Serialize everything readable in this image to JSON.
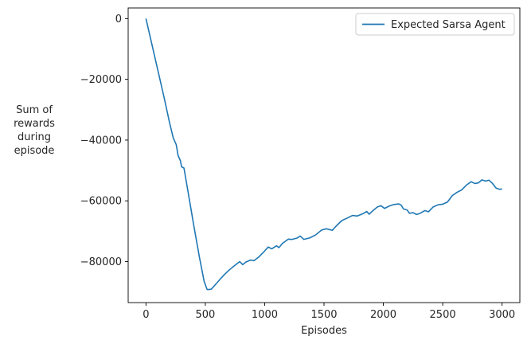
{
  "chart_data": {
    "type": "line",
    "title": "",
    "xlabel": "Episodes",
    "ylabel": [
      "Sum of",
      "rewards",
      "during",
      "episode"
    ],
    "xlim": [
      -150,
      3150
    ],
    "ylim": [
      -93500,
      3500
    ],
    "xticks": [
      0,
      500,
      1000,
      1500,
      2000,
      2500,
      3000
    ],
    "yticks": [
      0,
      -20000,
      -40000,
      -60000,
      -80000
    ],
    "grid": false,
    "legend": "top-right",
    "series": [
      {
        "name": "Expected Sarsa Agent",
        "color": "#1f77b4",
        "points": [
          [
            0,
            0
          ],
          [
            50,
            -8500
          ],
          [
            100,
            -17000
          ],
          [
            150,
            -25500
          ],
          [
            200,
            -34500
          ],
          [
            230,
            -39300
          ],
          [
            255,
            -41500
          ],
          [
            270,
            -45000
          ],
          [
            290,
            -46800
          ],
          [
            300,
            -48800
          ],
          [
            320,
            -49200
          ],
          [
            350,
            -56000
          ],
          [
            400,
            -67500
          ],
          [
            450,
            -78500
          ],
          [
            490,
            -86500
          ],
          [
            515,
            -89200
          ],
          [
            530,
            -89200
          ],
          [
            550,
            -89100
          ],
          [
            580,
            -87800
          ],
          [
            620,
            -86000
          ],
          [
            660,
            -84300
          ],
          [
            700,
            -82800
          ],
          [
            750,
            -81200
          ],
          [
            790,
            -80000
          ],
          [
            815,
            -81000
          ],
          [
            840,
            -80200
          ],
          [
            880,
            -79500
          ],
          [
            910,
            -79700
          ],
          [
            950,
            -78500
          ],
          [
            1000,
            -76500
          ],
          [
            1030,
            -75200
          ],
          [
            1060,
            -75800
          ],
          [
            1100,
            -74800
          ],
          [
            1120,
            -75400
          ],
          [
            1150,
            -74000
          ],
          [
            1200,
            -72600
          ],
          [
            1230,
            -72700
          ],
          [
            1270,
            -72300
          ],
          [
            1300,
            -71600
          ],
          [
            1330,
            -72700
          ],
          [
            1380,
            -72200
          ],
          [
            1430,
            -71200
          ],
          [
            1480,
            -69600
          ],
          [
            1520,
            -69200
          ],
          [
            1570,
            -69700
          ],
          [
            1600,
            -68400
          ],
          [
            1650,
            -66500
          ],
          [
            1700,
            -65600
          ],
          [
            1740,
            -64800
          ],
          [
            1780,
            -65000
          ],
          [
            1830,
            -64200
          ],
          [
            1860,
            -63500
          ],
          [
            1880,
            -64400
          ],
          [
            1910,
            -63300
          ],
          [
            1950,
            -62000
          ],
          [
            1980,
            -61600
          ],
          [
            2010,
            -62500
          ],
          [
            2050,
            -61700
          ],
          [
            2090,
            -61200
          ],
          [
            2130,
            -61000
          ],
          [
            2150,
            -61400
          ],
          [
            2170,
            -62700
          ],
          [
            2200,
            -63000
          ],
          [
            2220,
            -64100
          ],
          [
            2250,
            -63900
          ],
          [
            2280,
            -64500
          ],
          [
            2310,
            -64100
          ],
          [
            2350,
            -63200
          ],
          [
            2380,
            -63600
          ],
          [
            2420,
            -62000
          ],
          [
            2460,
            -61300
          ],
          [
            2500,
            -61100
          ],
          [
            2540,
            -60400
          ],
          [
            2580,
            -58300
          ],
          [
            2620,
            -57200
          ],
          [
            2660,
            -56400
          ],
          [
            2700,
            -54800
          ],
          [
            2740,
            -53700
          ],
          [
            2770,
            -54300
          ],
          [
            2800,
            -54100
          ],
          [
            2830,
            -53100
          ],
          [
            2860,
            -53500
          ],
          [
            2890,
            -53200
          ],
          [
            2920,
            -54300
          ],
          [
            2950,
            -55800
          ],
          [
            2980,
            -56200
          ],
          [
            3000,
            -56100
          ]
        ]
      }
    ]
  }
}
